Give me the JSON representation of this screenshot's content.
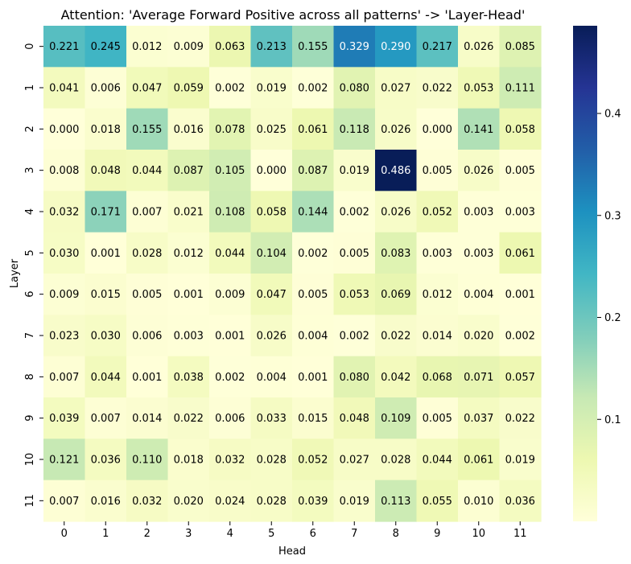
{
  "chart_data": {
    "type": "heatmap",
    "title": "Attention: 'Average Forward Positive across all patterns' -> 'Layer-Head'",
    "xlabel": "Head",
    "ylabel": "Layer",
    "x_categories": [
      "0",
      "1",
      "2",
      "3",
      "4",
      "5",
      "6",
      "7",
      "8",
      "9",
      "10",
      "11"
    ],
    "y_categories": [
      "0",
      "1",
      "2",
      "3",
      "4",
      "5",
      "6",
      "7",
      "8",
      "9",
      "10",
      "11"
    ],
    "values": [
      [
        0.221,
        0.245,
        0.012,
        0.009,
        0.063,
        0.213,
        0.155,
        0.329,
        0.29,
        0.217,
        0.026,
        0.085
      ],
      [
        0.041,
        0.006,
        0.047,
        0.059,
        0.002,
        0.019,
        0.002,
        0.08,
        0.027,
        0.022,
        0.053,
        0.111
      ],
      [
        0.0,
        0.018,
        0.155,
        0.016,
        0.078,
        0.025,
        0.061,
        0.118,
        0.026,
        0.0,
        0.141,
        0.058
      ],
      [
        0.008,
        0.048,
        0.044,
        0.087,
        0.105,
        0.0,
        0.087,
        0.019,
        0.486,
        0.005,
        0.026,
        0.005
      ],
      [
        0.032,
        0.171,
        0.007,
        0.021,
        0.108,
        0.058,
        0.144,
        0.002,
        0.026,
        0.052,
        0.003,
        0.003
      ],
      [
        0.03,
        0.001,
        0.028,
        0.012,
        0.044,
        0.104,
        0.002,
        0.005,
        0.083,
        0.003,
        0.003,
        0.061
      ],
      [
        0.009,
        0.015,
        0.005,
        0.001,
        0.009,
        0.047,
        0.005,
        0.053,
        0.069,
        0.012,
        0.004,
        0.001
      ],
      [
        0.023,
        0.03,
        0.006,
        0.003,
        0.001,
        0.026,
        0.004,
        0.002,
        0.022,
        0.014,
        0.02,
        0.002
      ],
      [
        0.007,
        0.044,
        0.001,
        0.038,
        0.002,
        0.004,
        0.001,
        0.08,
        0.042,
        0.068,
        0.071,
        0.057
      ],
      [
        0.039,
        0.007,
        0.014,
        0.022,
        0.006,
        0.033,
        0.015,
        0.048,
        0.109,
        0.005,
        0.037,
        0.022
      ],
      [
        0.121,
        0.036,
        0.11,
        0.018,
        0.032,
        0.028,
        0.052,
        0.027,
        0.028,
        0.044,
        0.061,
        0.019
      ],
      [
        0.007,
        0.016,
        0.032,
        0.02,
        0.024,
        0.028,
        0.039,
        0.019,
        0.113,
        0.055,
        0.01,
        0.036
      ]
    ],
    "colorbar": {
      "min": 0.0,
      "max": 0.486,
      "ticks": [
        "0.1",
        "0.2",
        "0.3",
        "0.4"
      ],
      "tick_values": [
        0.1,
        0.2,
        0.3,
        0.4
      ]
    },
    "colormap": "YlGnBu",
    "annotation_format": "3 decimals",
    "grid": false,
    "legend": "colorbar-right"
  }
}
